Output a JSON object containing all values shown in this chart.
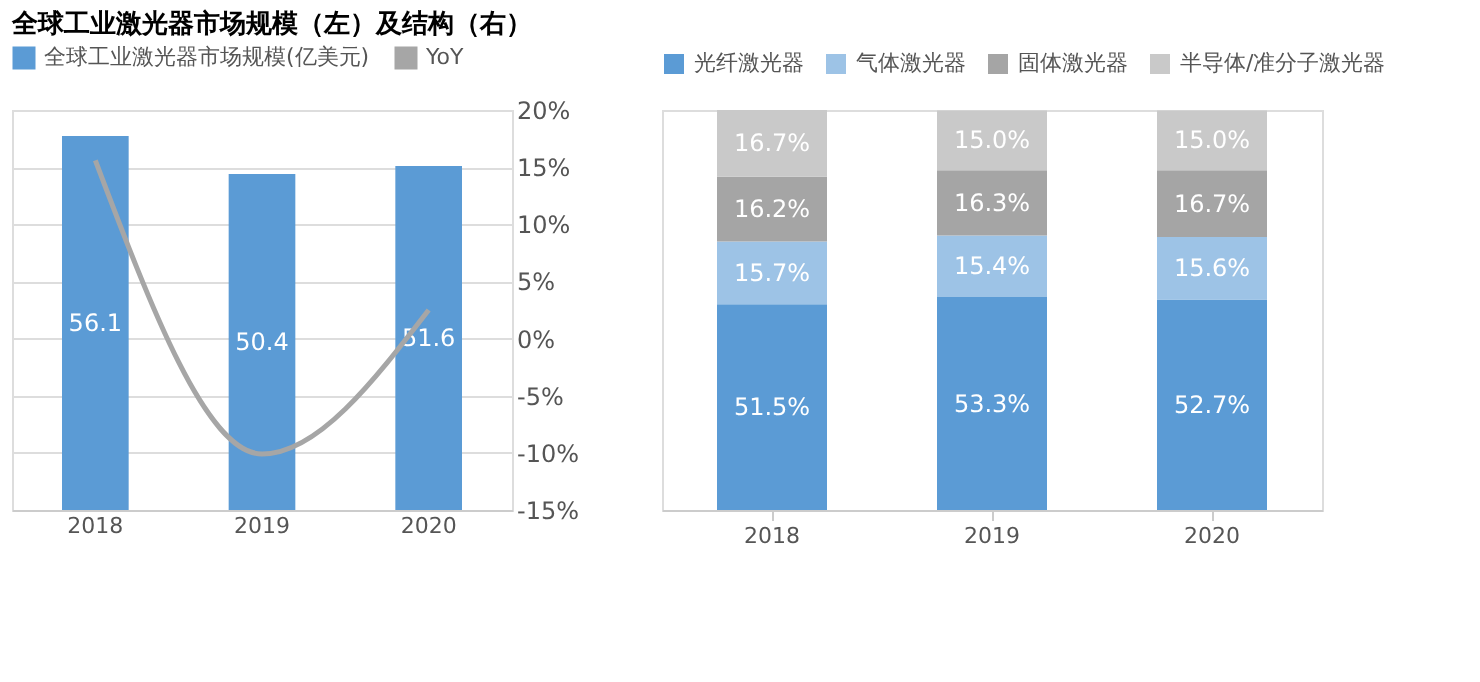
{
  "chart_data": [
    {
      "type": "bar",
      "title": "全球工业激光器市场规模（左）及结构（右）",
      "categories": [
        "2018",
        "2019",
        "2020"
      ],
      "y2lim": [
        -15,
        20
      ],
      "y2ticks": [
        {
          "value": -15,
          "label": "-15%"
        },
        {
          "value": -10,
          "label": "-10%"
        },
        {
          "value": -5,
          "label": "-5%"
        },
        {
          "value": 0,
          "label": "0%"
        },
        {
          "value": 5,
          "label": "5%"
        },
        {
          "value": 10,
          "label": "10%"
        },
        {
          "value": 15,
          "label": "15%"
        },
        {
          "value": 20,
          "label": "20%"
        }
      ],
      "series": [
        {
          "name": "全球工业激光器市场规模(亿美元)",
          "type": "bar",
          "color": "#5b9bd5",
          "values": [
            56.1,
            50.4,
            51.6
          ],
          "value_labels": [
            "56.1",
            "50.4",
            "51.6"
          ]
        },
        {
          "name": "YoY",
          "type": "line",
          "axis": "y2",
          "color": "#a6a6a6",
          "values": [
            15.6,
            -10.1,
            2.5
          ]
        }
      ],
      "grid": "y",
      "legend": "top",
      "marker": "none"
    },
    {
      "type": "bar",
      "stacked": true,
      "categories": [
        "2018",
        "2019",
        "2020"
      ],
      "series": [
        {
          "name": "光纤激光器",
          "color": "#5b9bd5",
          "values": [
            51.5,
            53.3,
            52.7
          ],
          "value_labels": [
            "51.5%",
            "53.3%",
            "52.7%"
          ]
        },
        {
          "name": "气体激光器",
          "color": "#9dc3e6",
          "values": [
            15.7,
            15.4,
            15.6
          ],
          "value_labels": [
            "15.7%",
            "15.4%",
            "15.6%"
          ]
        },
        {
          "name": "固体激光器",
          "color": "#a5a5a5",
          "values": [
            16.2,
            16.3,
            16.7
          ],
          "value_labels": [
            "16.2%",
            "16.3%",
            "16.7%"
          ]
        },
        {
          "name": "半导体/准分子激光器",
          "color": "#c9c9c9",
          "values": [
            16.7,
            15.0,
            15.0
          ],
          "value_labels": [
            "16.7%",
            "15.0%",
            "15.0%"
          ]
        }
      ],
      "legend": "top"
    }
  ]
}
